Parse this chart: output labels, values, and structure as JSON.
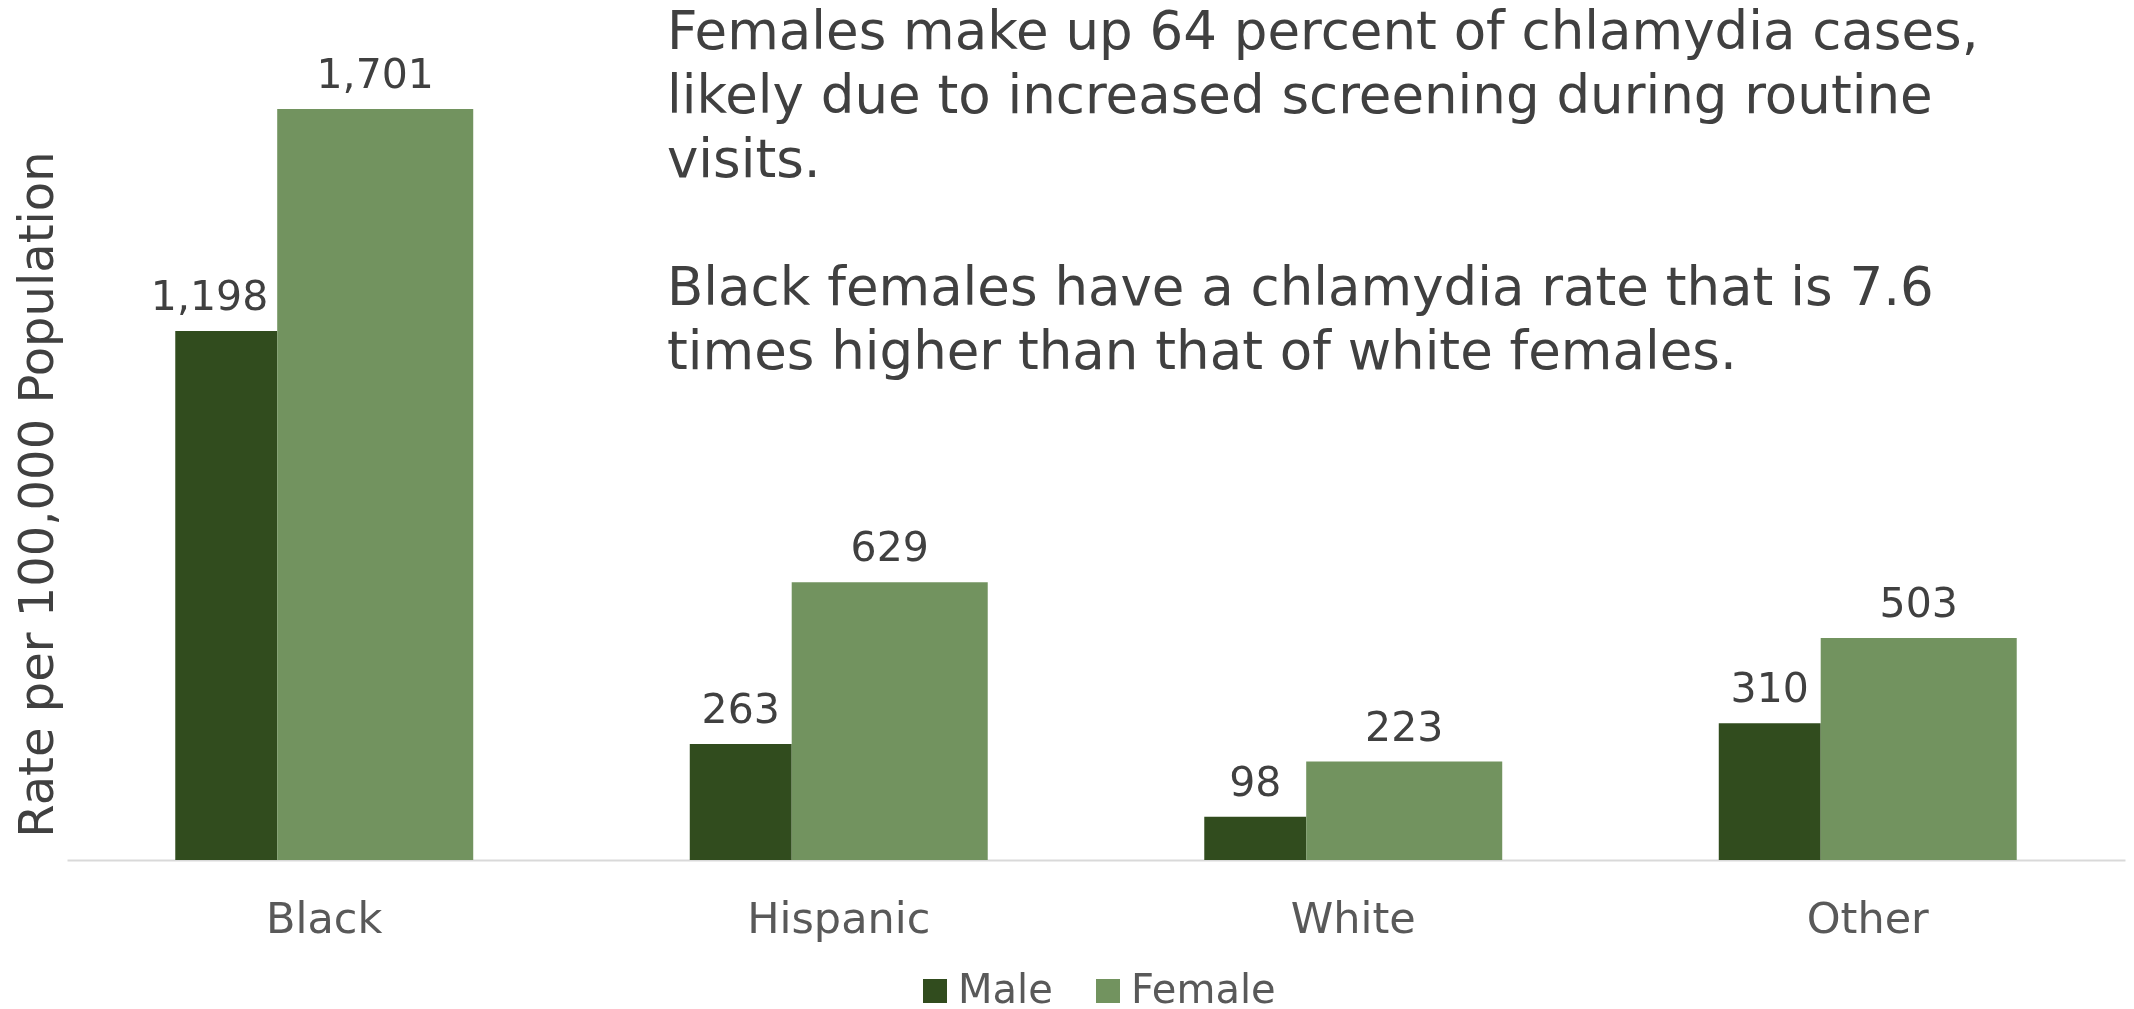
{
  "chart_data": {
    "type": "bar",
    "ylabel": "Rate per 100,000 Population",
    "categories": [
      "Black",
      "Hispanic",
      "White",
      "Other"
    ],
    "series": [
      {
        "name": "Male",
        "color": "#314c1e",
        "values": [
          1198,
          263,
          98,
          310
        ],
        "value_labels": [
          "1,198",
          "263",
          "98",
          "310"
        ]
      },
      {
        "name": "Female",
        "color": "#72935f",
        "values": [
          1701,
          629,
          223,
          503
        ],
        "value_labels": [
          "1,701",
          "629",
          "223",
          "503"
        ]
      }
    ],
    "legend": "bottom",
    "tick_labels": "x",
    "annotations": [
      "Females make up 64 percent of chlamydia cases, likely due to increased screening during routine visits.",
      "Black females have a chlamydia rate that is 7.6 times higher than that of white females."
    ]
  }
}
